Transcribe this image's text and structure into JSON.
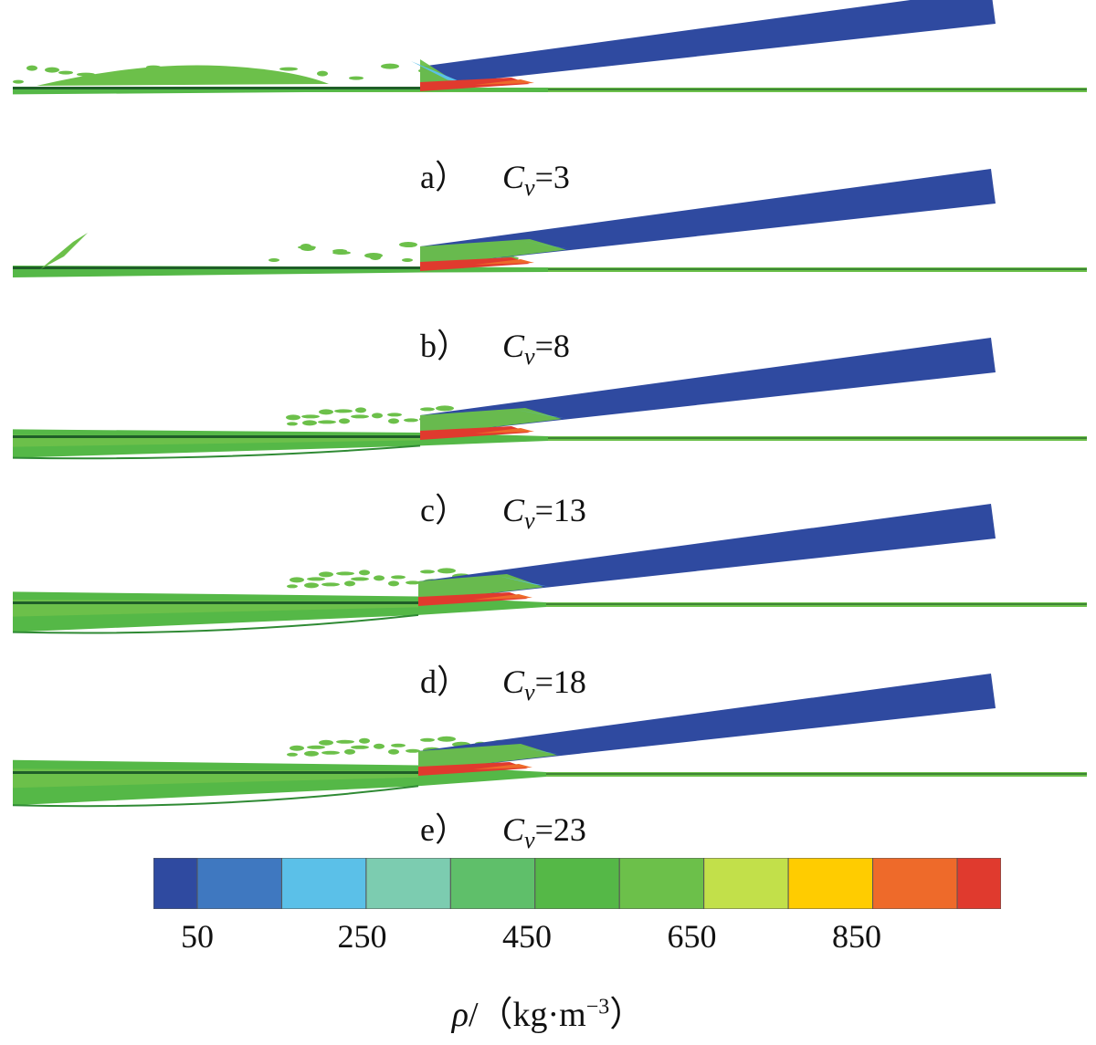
{
  "chart_data": {
    "type": "heatmap",
    "panels": [
      {
        "letter": "a）",
        "cv_symbol": "C",
        "cv_subscript": "v",
        "cv_value": "=3"
      },
      {
        "letter": "b）",
        "cv_symbol": "C",
        "cv_subscript": "v",
        "cv_value": "=8"
      },
      {
        "letter": "c）",
        "cv_symbol": "C",
        "cv_subscript": "v",
        "cv_value": "=13"
      },
      {
        "letter": "d）",
        "cv_symbol": "C",
        "cv_subscript": "v",
        "cv_value": "=18"
      },
      {
        "letter": "e）",
        "cv_symbol": "C",
        "cv_subscript": "v",
        "cv_value": "=23"
      }
    ],
    "colorbar": {
      "colors": [
        "#2f4aa0",
        "#3f78c0",
        "#5bc0e8",
        "#7cccb0",
        "#5fbf6a",
        "#55b847",
        "#6cc04a",
        "#c2e04a",
        "#ffcc00",
        "#ee6a2a",
        "#e03a2e"
      ],
      "tick_values": [
        50,
        250,
        450,
        650,
        850
      ],
      "tick_labels": [
        "50",
        "250",
        "450",
        "650",
        "850"
      ],
      "range": [
        0,
        1000
      ]
    },
    "unit_label": {
      "rho": "ρ",
      "rest": "/（kg·m",
      "exponent": "−3",
      "close": "）"
    }
  },
  "colors": {
    "plate": "#2f4aa0",
    "water_light": "#6cc04a",
    "water_mid": "#55b847",
    "water_dark": "#2f8a34",
    "line_dark": "#1f5e28",
    "hot": "#e03a2e",
    "warm": "#ee6a2a",
    "cyan": "#5bc0e8"
  }
}
